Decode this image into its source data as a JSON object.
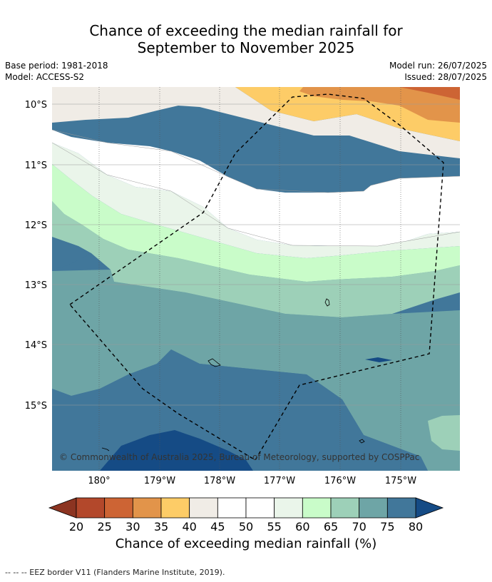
{
  "header": {
    "title_line1": "Chance of exceeding the median rainfall for",
    "title_line2": "September to November 2025",
    "base_period": "Base period: 1981-2018",
    "model": "Model: ACCESS-S2",
    "model_run": "Model run: 26/07/2025",
    "issued": "Issued: 28/07/2025"
  },
  "map": {
    "lat_labels": [
      "10°S",
      "11°S",
      "12°S",
      "13°S",
      "14°S",
      "15°S"
    ],
    "lon_labels": [
      "180°",
      "179°W",
      "178°W",
      "177°W",
      "176°W",
      "175°W"
    ],
    "copyright": "© Commonwealth of Australia 2025, Bureau of Meteorology, supported by COSPPac",
    "colors": {
      "p20": "#b3482b",
      "p25": "#cd6434",
      "p30": "#e2944a",
      "p35": "#fdcc67",
      "p40": "#f0ece6",
      "p45": "#ffffff",
      "p50": "#ffffff",
      "p55": "#eaf5ea",
      "p60": "#c9fcc9",
      "p65": "#9dd0b8",
      "p70": "#6ea5a6",
      "p75": "#41779a",
      "p80": "#154b85",
      "low_tail": "#8c3421"
    }
  },
  "colorbar": {
    "ticks": [
      "20",
      "25",
      "30",
      "35",
      "40",
      "45",
      "50",
      "55",
      "60",
      "65",
      "70",
      "75",
      "80"
    ],
    "label": "Chance of exceeding median rainfall (%)"
  },
  "footer": {
    "legend": "-- -- -- EEZ border V11 (Flanders Marine Institute, 2019)."
  }
}
